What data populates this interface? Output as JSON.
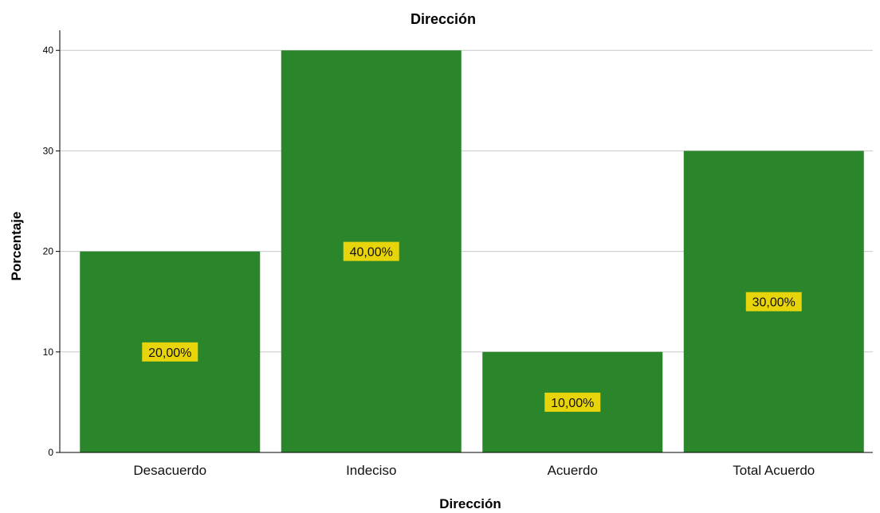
{
  "chart_data": {
    "type": "bar",
    "title": "Dirección",
    "xlabel": "Dirección",
    "ylabel": "Porcentaje",
    "categories": [
      "Desacuerdo",
      "Indeciso",
      "Acuerdo",
      "Total Acuerdo"
    ],
    "values": [
      20,
      40,
      10,
      30
    ],
    "data_labels": [
      "20,00%",
      "40,00%",
      "10,00%",
      "30,00%"
    ],
    "yticks": [
      "0",
      "10",
      "20",
      "30",
      "40"
    ],
    "ylim": [
      0,
      42
    ],
    "grid": true,
    "legend": "none",
    "colors": {
      "bar": "#2b862b",
      "label_bg": "#e8d40a",
      "grid": "#c8c8c8",
      "axis": "#000000"
    }
  }
}
